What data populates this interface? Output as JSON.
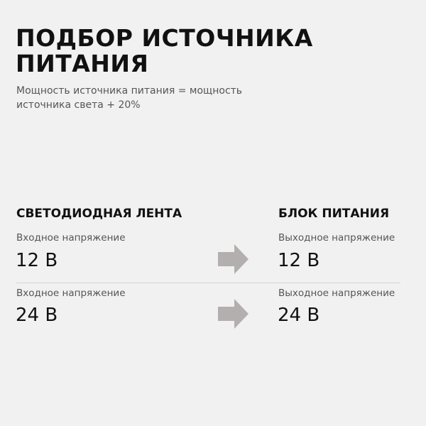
{
  "title": {
    "line1": "ПОДБОР ИСТОЧНИКА",
    "line2": "ПИТАНИЯ"
  },
  "subtitle": {
    "line1": "Мощность источника питания = мощность",
    "line2": "источника света + 20%"
  },
  "columns": {
    "left_header": "СВЕТОДИОДНАЯ ЛЕНТА",
    "right_header": "БЛОК ПИТАНИЯ"
  },
  "rows": [
    {
      "left_label": "Входное напряжение",
      "left_value": "12 В",
      "right_label": "Выходное напряжение",
      "right_value": "12 В"
    },
    {
      "left_label": "Входное напряжение",
      "left_value": "24 В",
      "right_label": "Выходное напряжение",
      "right_value": "24 В"
    }
  ],
  "colors": {
    "background": "#f1f1f1",
    "arrow": "#b3afaf",
    "text": "#111111"
  },
  "icons": {
    "arrow": "arrow-right-icon"
  }
}
